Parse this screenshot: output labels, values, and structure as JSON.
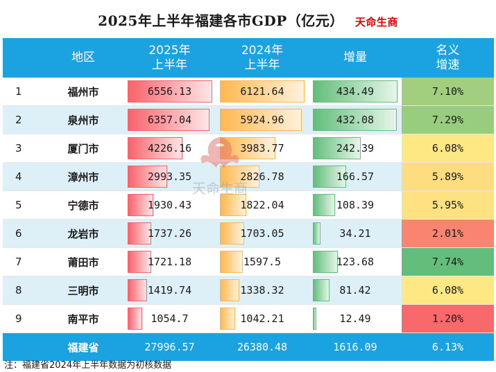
{
  "title": "2025年上半年福建各市GDP（亿元）",
  "brand": "天命生商",
  "watermark_text": "天命生商",
  "note": "注：福建省2024年上半年数据为初核数据",
  "headers": {
    "rank": "",
    "region": "地区",
    "gdp2025": "2025年\n上半年",
    "gdp2024": "2024年\n上半年",
    "increase": "增量",
    "growth": "名义\n增速"
  },
  "colors": {
    "header_bg": "#1aa3e0",
    "bar_2025": "#f8636b",
    "bar_2024": "#ffb84f",
    "bar_increase": "#63be7b",
    "row_alt": "#ddeff7"
  },
  "chart_data": {
    "type": "table",
    "columns": [
      "",
      "地区",
      "2025年上半年",
      "2024年上半年",
      "增量",
      "名义增速"
    ],
    "rows": [
      {
        "rank": "1",
        "region": "福州市",
        "gdp2025": "6556.13",
        "gdp2024": "6121.64",
        "increase": "434.49",
        "growth": "7.10%",
        "growth_color": "#a1cf7f"
      },
      {
        "rank": "2",
        "region": "泉州市",
        "gdp2025": "6357.04",
        "gdp2024": "5924.96",
        "increase": "432.08",
        "growth": "7.29%",
        "growth_color": "#99cd7e"
      },
      {
        "rank": "3",
        "region": "厦门市",
        "gdp2025": "4226.16",
        "gdp2024": "3983.77",
        "increase": "242.39",
        "growth": "6.08%",
        "growth_color": "#fde883"
      },
      {
        "rank": "4",
        "region": "漳州市",
        "gdp2025": "2993.35",
        "gdp2024": "2826.78",
        "increase": "166.57",
        "growth": "5.89%",
        "growth_color": "#fedd81"
      },
      {
        "rank": "5",
        "region": "宁德市",
        "gdp2025": "1930.43",
        "gdp2024": "1822.04",
        "increase": "108.39",
        "growth": "5.95%",
        "growth_color": "#fee282"
      },
      {
        "rank": "6",
        "region": "龙岩市",
        "gdp2025": "1737.26",
        "gdp2024": "1703.05",
        "increase": "34.21",
        "growth": "2.01%",
        "growth_color": "#f98570"
      },
      {
        "rank": "7",
        "region": "莆田市",
        "gdp2025": "1721.18",
        "gdp2024": "1597.5",
        "increase": "123.68",
        "growth": "7.74%",
        "growth_color": "#63be7b"
      },
      {
        "rank": "8",
        "region": "三明市",
        "gdp2025": "1419.74",
        "gdp2024": "1338.32",
        "increase": "81.42",
        "growth": "6.08%",
        "growth_color": "#fde883"
      },
      {
        "rank": "9",
        "region": "南平市",
        "gdp2025": "1054.7",
        "gdp2024": "1042.21",
        "increase": "12.49",
        "growth": "1.20%",
        "growth_color": "#f8696b"
      }
    ],
    "total": {
      "label": "福建省",
      "gdp2025": "27996.57",
      "gdp2024": "26380.48",
      "increase": "1616.09",
      "growth": "6.13%"
    }
  }
}
